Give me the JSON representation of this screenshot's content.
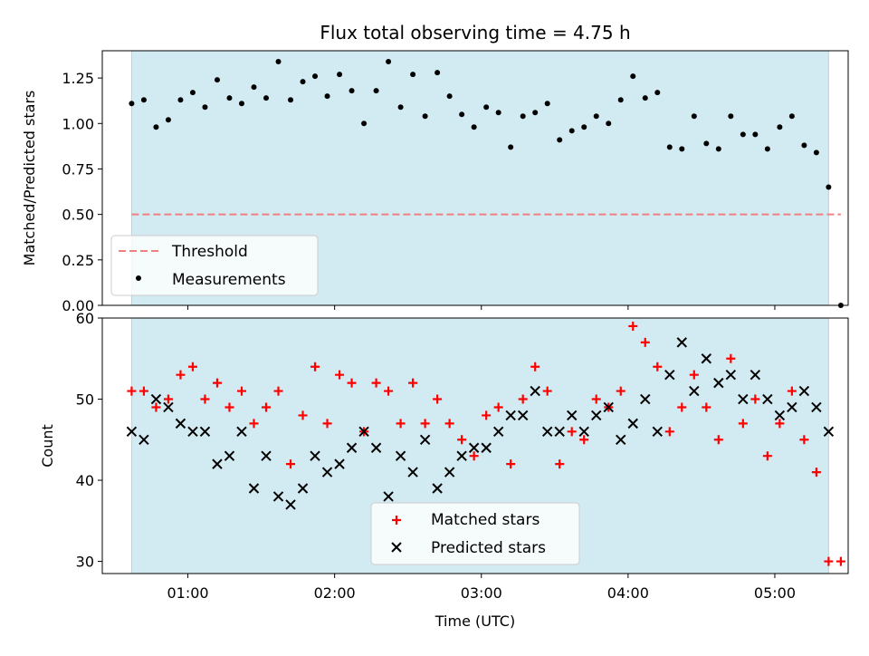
{
  "title": "Flux total observing time = 4.75 h",
  "colors": {
    "span": "#add8e6",
    "threshold": "#f08080",
    "matched": "#ff0000",
    "predicted": "#000000",
    "measurement": "#000000"
  },
  "chart_data": [
    {
      "type": "scatter",
      "ylabel": "Matched/Predicted stars",
      "ylim": [
        0,
        1.4
      ],
      "yticks": [
        "0.00",
        "0.25",
        "0.50",
        "0.75",
        "1.00",
        "1.25"
      ],
      "shaded_span": [
        "00:37",
        "05:22"
      ],
      "threshold": {
        "name": "Threshold",
        "value": 0.5,
        "x": [
          "00:37",
          "05:27"
        ]
      },
      "legend": [
        "Threshold",
        "Measurements"
      ],
      "legend_position": "lower-left",
      "series": [
        {
          "name": "Measurements",
          "x": [
            "00:37",
            "00:42",
            "00:47",
            "00:52",
            "00:57",
            "01:02",
            "01:07",
            "01:12",
            "01:17",
            "01:22",
            "01:27",
            "01:32",
            "01:37",
            "01:42",
            "01:47",
            "01:52",
            "01:57",
            "02:02",
            "02:07",
            "02:12",
            "02:17",
            "02:22",
            "02:27",
            "02:32",
            "02:37",
            "02:42",
            "02:47",
            "02:52",
            "02:57",
            "03:02",
            "03:07",
            "03:12",
            "03:17",
            "03:22",
            "03:27",
            "03:32",
            "03:37",
            "03:42",
            "03:47",
            "03:52",
            "03:57",
            "04:02",
            "04:07",
            "04:12",
            "04:17",
            "04:22",
            "04:27",
            "04:32",
            "04:37",
            "04:42",
            "04:47",
            "04:52",
            "04:57",
            "05:02",
            "05:07",
            "05:12",
            "05:17",
            "05:22",
            "05:27"
          ],
          "y": [
            1.11,
            1.13,
            0.98,
            1.02,
            1.13,
            1.17,
            1.09,
            1.24,
            1.14,
            1.11,
            1.2,
            1.14,
            1.34,
            1.13,
            1.23,
            1.26,
            1.15,
            1.27,
            1.18,
            1.0,
            1.18,
            1.34,
            1.09,
            1.27,
            1.04,
            1.28,
            1.15,
            1.05,
            0.98,
            1.09,
            1.06,
            0.87,
            1.04,
            1.06,
            1.11,
            0.91,
            0.96,
            0.98,
            1.04,
            1.0,
            1.13,
            1.26,
            1.14,
            1.17,
            0.87,
            0.86,
            1.04,
            0.89,
            0.86,
            1.04,
            0.94,
            0.94,
            0.86,
            0.98,
            1.04,
            0.88,
            0.84,
            0.65,
            0.0
          ]
        }
      ]
    },
    {
      "type": "scatter",
      "ylabel": "Count",
      "xlabel": "Time (UTC)",
      "ylim": [
        28.5,
        60
      ],
      "yticks": [
        "30",
        "40",
        "50",
        "60"
      ],
      "xticks": [
        "01:00",
        "02:00",
        "03:00",
        "04:00",
        "05:00"
      ],
      "xlim": [
        "00:25",
        "05:30"
      ],
      "shaded_span": [
        "00:37",
        "05:22"
      ],
      "legend": [
        "Matched stars",
        "Predicted stars"
      ],
      "legend_position": "lower-center",
      "x": [
        "00:37",
        "00:42",
        "00:47",
        "00:52",
        "00:57",
        "01:02",
        "01:07",
        "01:12",
        "01:17",
        "01:22",
        "01:27",
        "01:32",
        "01:37",
        "01:42",
        "01:47",
        "01:52",
        "01:57",
        "02:02",
        "02:07",
        "02:12",
        "02:17",
        "02:22",
        "02:27",
        "02:32",
        "02:37",
        "02:42",
        "02:47",
        "02:52",
        "02:57",
        "03:02",
        "03:07",
        "03:12",
        "03:17",
        "03:22",
        "03:27",
        "03:32",
        "03:37",
        "03:42",
        "03:47",
        "03:52",
        "03:57",
        "04:02",
        "04:07",
        "04:12",
        "04:17",
        "04:22",
        "04:27",
        "04:32",
        "04:37",
        "04:42",
        "04:47",
        "04:52",
        "04:57",
        "05:02",
        "05:07",
        "05:12",
        "05:17",
        "05:22",
        "05:27"
      ],
      "series": [
        {
          "name": "Matched stars",
          "values": [
            51,
            51,
            49,
            50,
            53,
            54,
            50,
            52,
            49,
            51,
            47,
            49,
            51,
            42,
            48,
            54,
            47,
            53,
            52,
            46,
            52,
            51,
            47,
            52,
            47,
            50,
            47,
            45,
            43,
            48,
            49,
            42,
            50,
            54,
            51,
            42,
            46,
            45,
            50,
            49,
            51,
            59,
            57,
            54,
            46,
            49,
            53,
            49,
            45,
            55,
            47,
            50,
            43,
            47,
            51,
            45,
            41,
            30,
            30
          ]
        },
        {
          "name": "Predicted stars",
          "values": [
            46,
            45,
            50,
            49,
            47,
            46,
            46,
            42,
            43,
            46,
            39,
            43,
            38,
            37,
            39,
            43,
            41,
            42,
            44,
            46,
            44,
            38,
            43,
            41,
            45,
            39,
            41,
            43,
            44,
            44,
            46,
            48,
            48,
            51,
            46,
            46,
            48,
            46,
            48,
            49,
            45,
            47,
            50,
            46,
            53,
            57,
            51,
            55,
            52,
            53,
            50,
            53,
            50,
            48,
            49,
            51,
            49,
            46,
            null
          ]
        }
      ]
    }
  ]
}
